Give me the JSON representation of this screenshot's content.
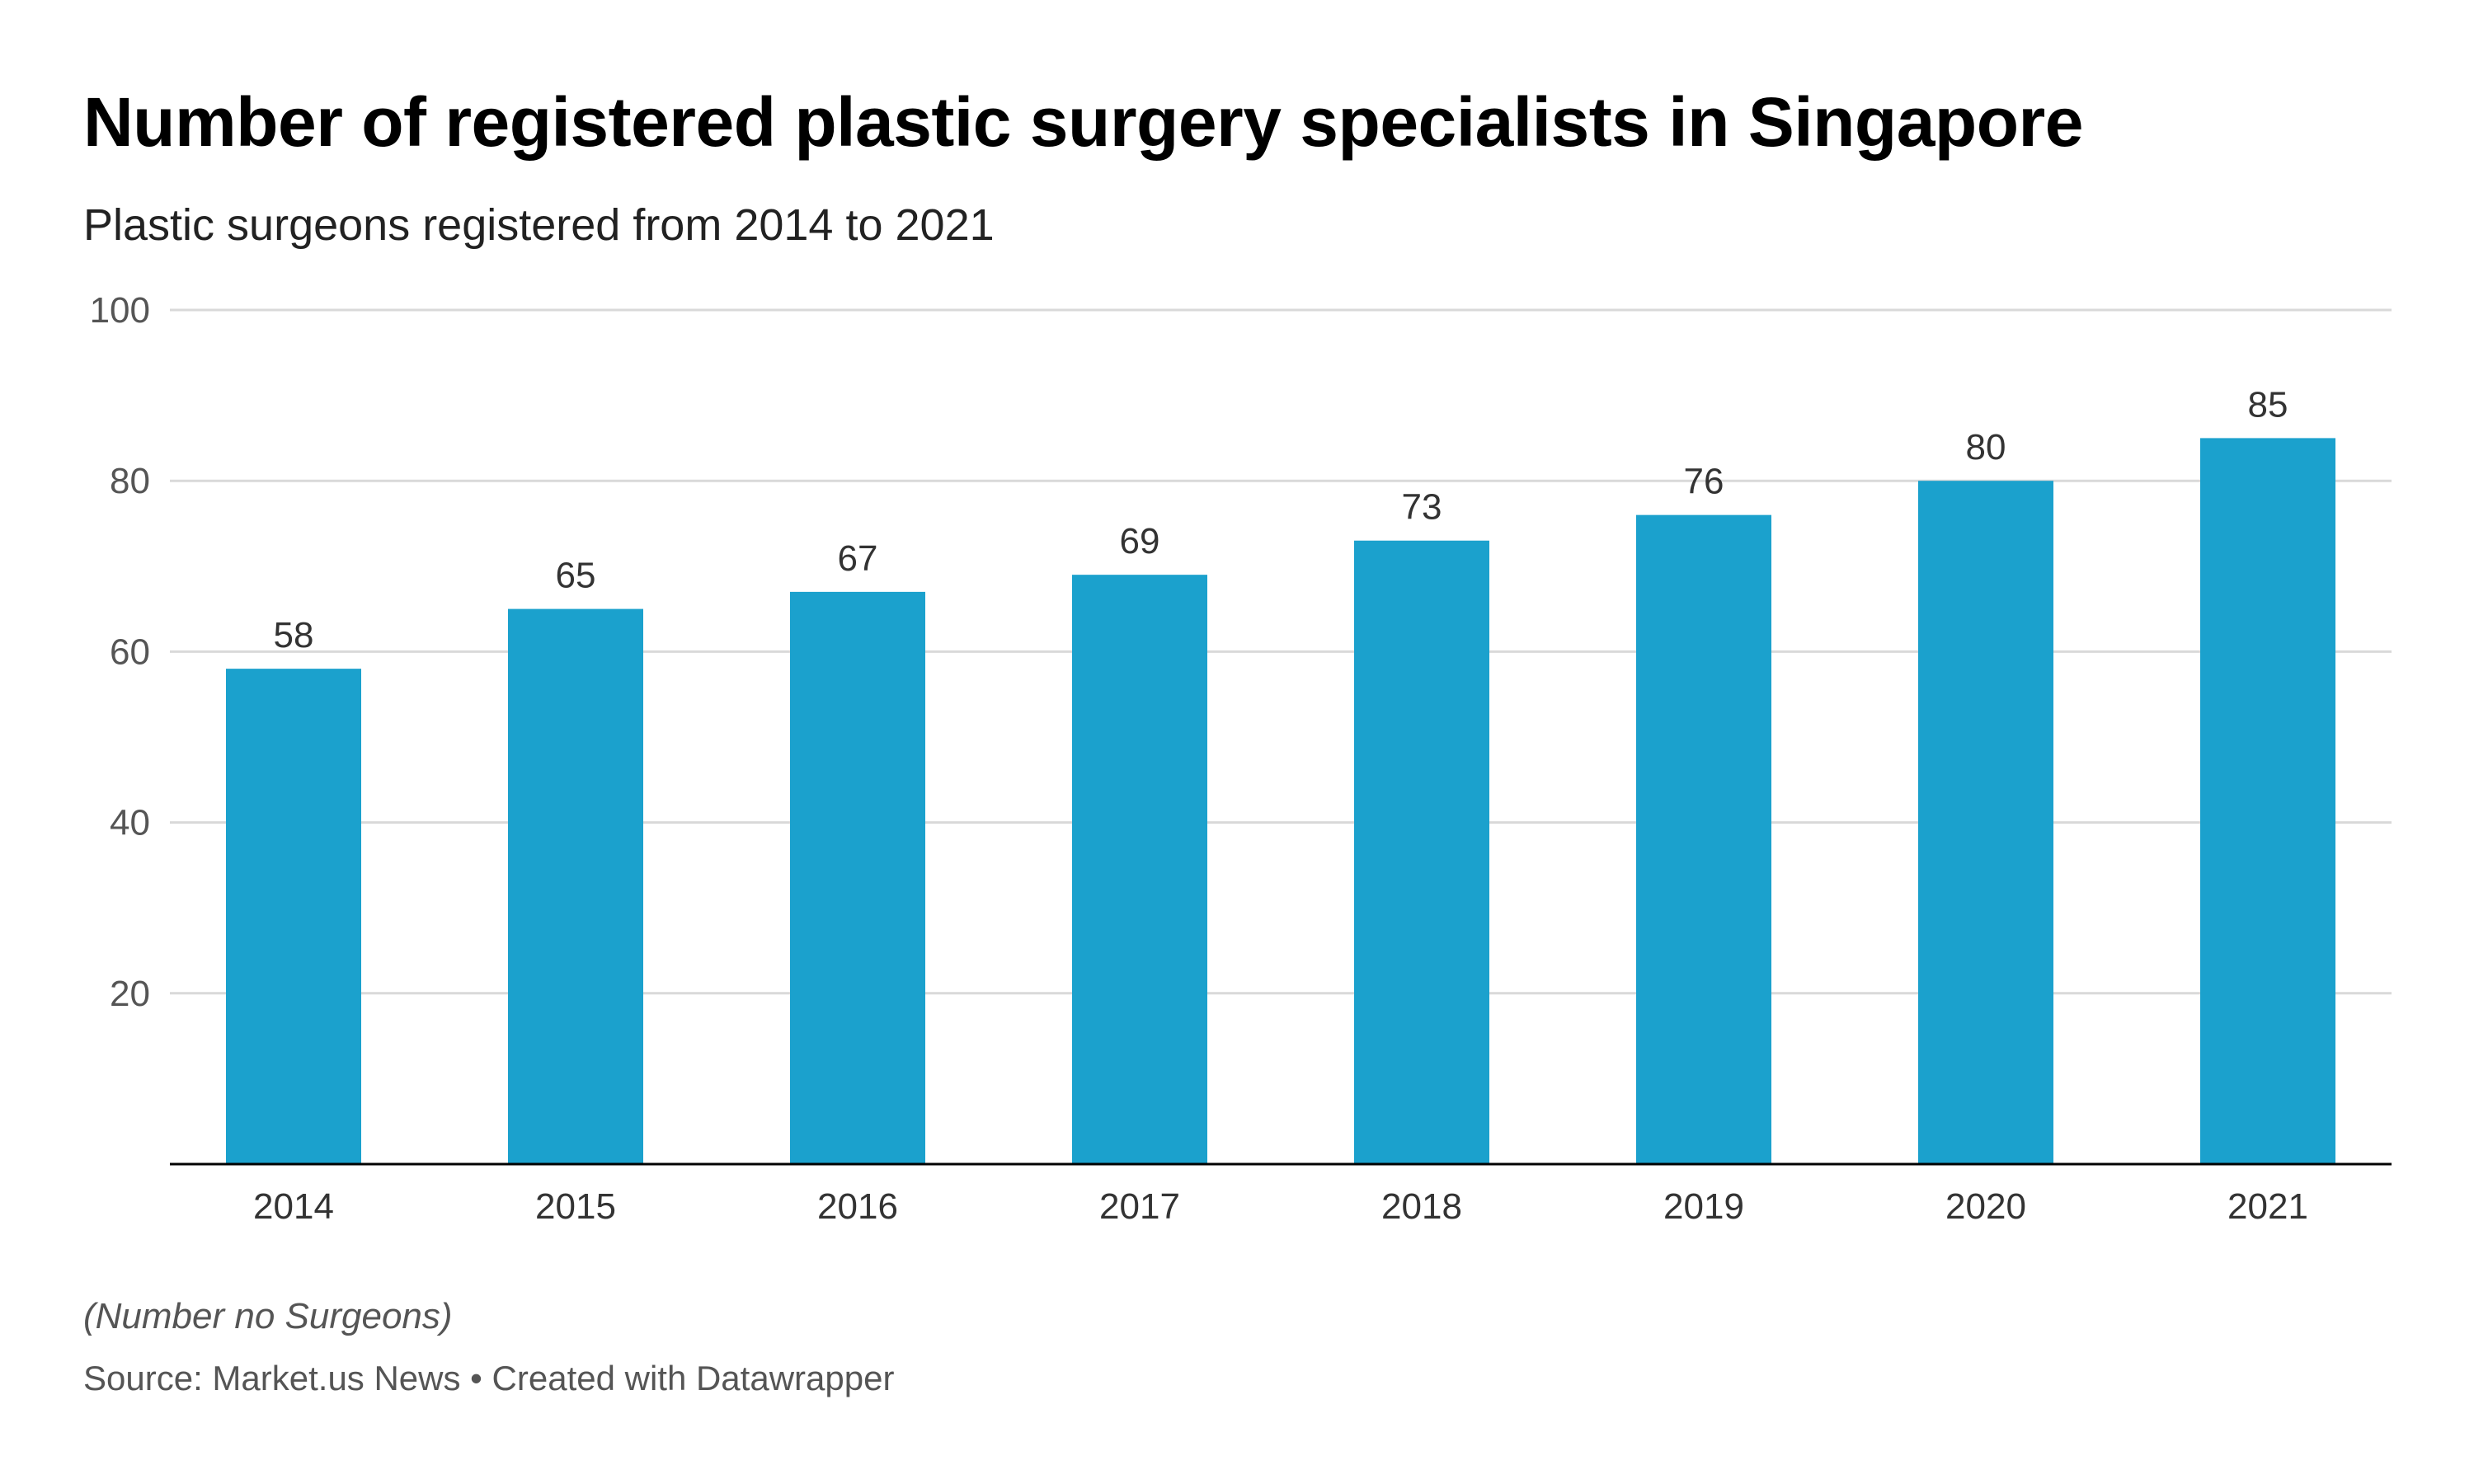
{
  "title": "Number of registered plastic surgery specialists in Singapore",
  "subtitle": "Plastic surgeons registered from 2014 to 2021",
  "note": "(Number no Surgeons)",
  "source": "Source: Market.us News • Created with Datawrapper",
  "colors": {
    "bar": "#1ba1cd",
    "grid": "#d9d9d9",
    "axis": "#000000"
  },
  "chart_data": {
    "type": "bar",
    "title": "Number of registered plastic surgery specialists in Singapore",
    "subtitle": "Plastic surgeons registered from 2014 to 2021",
    "xlabel": "",
    "ylabel": "",
    "categories": [
      "2014",
      "2015",
      "2016",
      "2017",
      "2018",
      "2019",
      "2020",
      "2021"
    ],
    "values": [
      58,
      65,
      67,
      69,
      73,
      76,
      80,
      85
    ],
    "ylim": [
      0,
      100
    ],
    "yticks": [
      20,
      40,
      60,
      80,
      100
    ],
    "grid": true,
    "data_labels": true
  }
}
